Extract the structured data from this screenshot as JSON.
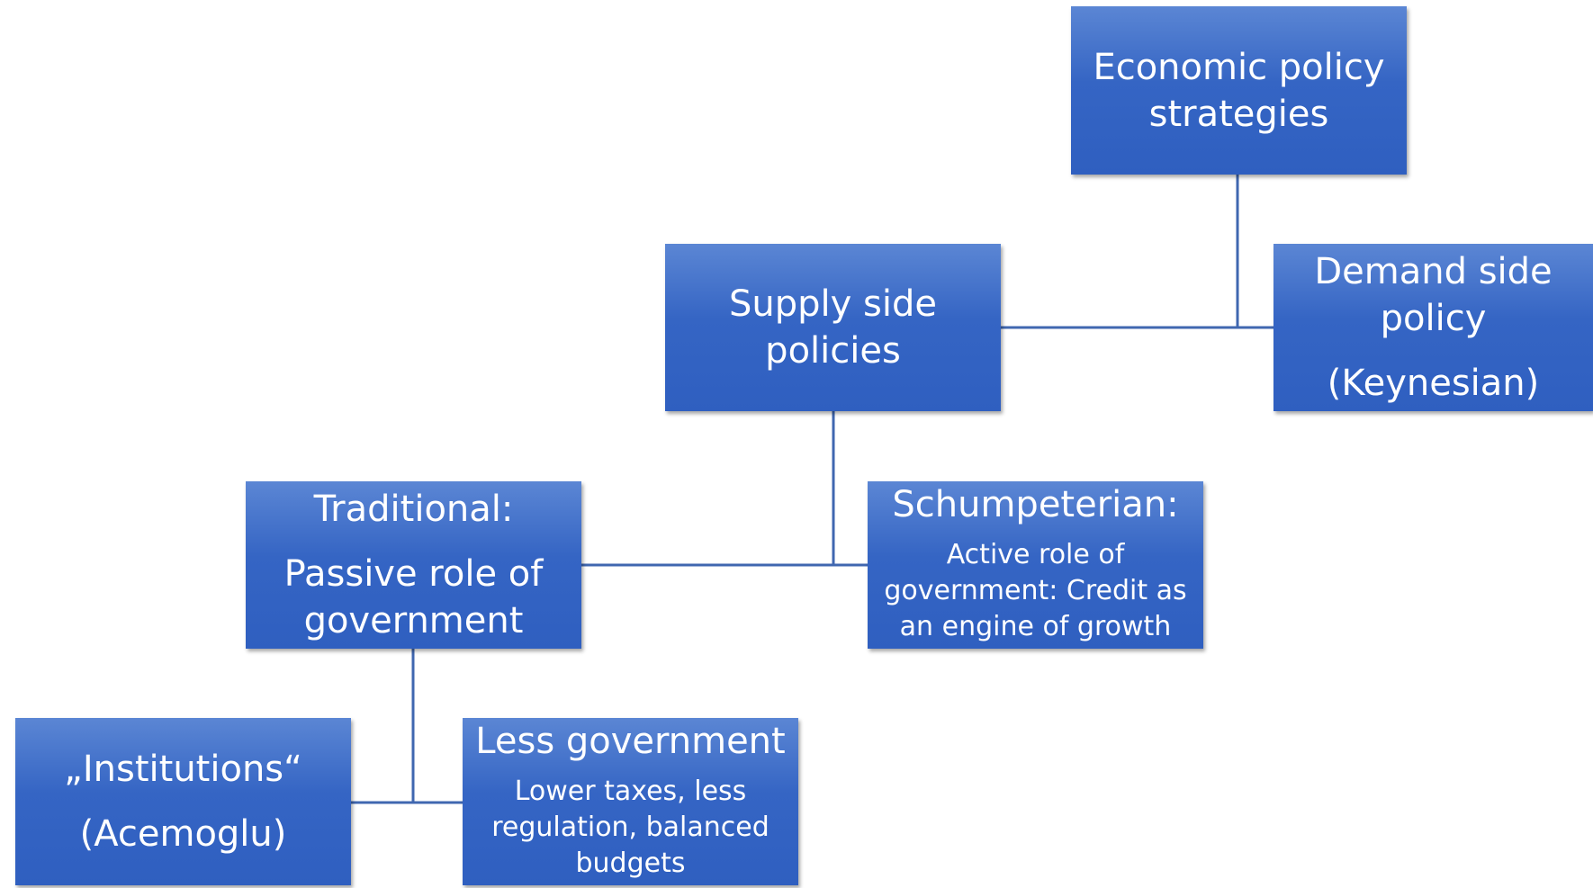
{
  "nodes": [
    {
      "label": "Economic policy strategies"
    },
    {
      "label": "Supply side policies"
    },
    {
      "label": "Demand side policy",
      "detail": "(Keynesian)"
    },
    {
      "label": "Traditional:",
      "detail": "Passive role of government"
    },
    {
      "label": "Schumpeterian:",
      "detail": "Active role of government: Credit as an engine of growth"
    },
    {
      "label": "„Institutions“",
      "detail": "(Acemoglu)"
    },
    {
      "label": "Less government",
      "detail": "Lower taxes, less regulation, balanced budgets"
    }
  ]
}
